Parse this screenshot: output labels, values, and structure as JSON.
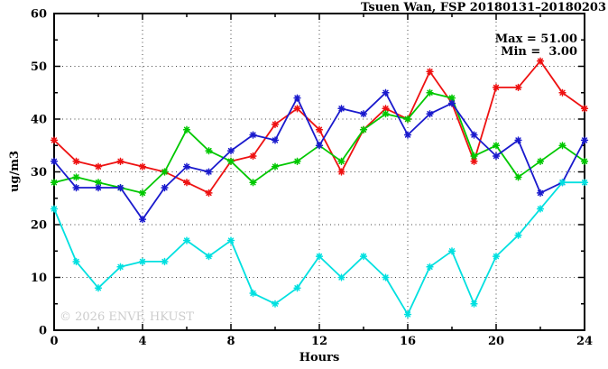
{
  "title": "Tsuen Wan, FSP 20180131–20180203",
  "annotation": {
    "max_label": "Max = 51.00",
    "min_label": "Min =  3.00"
  },
  "watermark": "© 2026 ENVF, HKUST",
  "axes": {
    "xlabel": "Hours",
    "ylabel": "ug/m3"
  },
  "colors": {
    "red": "#ee1111",
    "green": "#00c800",
    "blue": "#1a1acd",
    "cyan": "#00e0e0",
    "frame": "#000000",
    "grid": "#444444",
    "watermark": "#cccccc"
  },
  "chart_data": {
    "type": "line",
    "title": "Tsuen Wan, FSP 20180131–20180203",
    "xlabel": "Hours",
    "ylabel": "ug/m3",
    "xlim": [
      0,
      24
    ],
    "ylim": [
      0,
      60
    ],
    "x_major_ticks": [
      0,
      4,
      8,
      12,
      16,
      20,
      24
    ],
    "x_minor_ticks": [
      2,
      6,
      10,
      14,
      18,
      22
    ],
    "y_major_ticks": [
      0,
      10,
      20,
      30,
      40,
      50,
      60
    ],
    "y_minor_ticks": [
      5,
      15,
      25,
      35,
      45,
      55
    ],
    "grid": "dotted at major ticks",
    "legend": "none",
    "marker": "asterisk",
    "max": 51.0,
    "min": 3.0,
    "x": [
      0,
      1,
      2,
      3,
      4,
      5,
      6,
      7,
      8,
      9,
      10,
      11,
      12,
      13,
      14,
      15,
      16,
      17,
      18,
      19,
      20,
      21,
      22,
      23,
      24
    ],
    "series": [
      {
        "name": "red",
        "color": "#ee1111",
        "values": [
          36,
          32,
          31,
          32,
          31,
          30,
          28,
          26,
          32,
          33,
          39,
          42,
          38,
          30,
          38,
          42,
          40,
          49,
          43,
          32,
          46,
          46,
          51,
          45,
          42
        ]
      },
      {
        "name": "green",
        "color": "#00c800",
        "values": [
          28,
          29,
          28,
          27,
          26,
          30,
          38,
          34,
          32,
          28,
          31,
          32,
          35,
          32,
          38,
          41,
          40,
          45,
          44,
          33,
          35,
          29,
          32,
          35,
          32
        ]
      },
      {
        "name": "blue",
        "color": "#1a1acd",
        "values": [
          32,
          27,
          27,
          27,
          21,
          27,
          31,
          30,
          34,
          37,
          36,
          44,
          35,
          42,
          41,
          45,
          37,
          41,
          43,
          37,
          33,
          36,
          26,
          28,
          36
        ]
      },
      {
        "name": "cyan",
        "color": "#00e0e0",
        "values": [
          23,
          13,
          8,
          12,
          13,
          13,
          17,
          14,
          17,
          7,
          5,
          8,
          14,
          10,
          14,
          10,
          3,
          12,
          15,
          5,
          14,
          18,
          23,
          28,
          28
        ]
      }
    ]
  }
}
